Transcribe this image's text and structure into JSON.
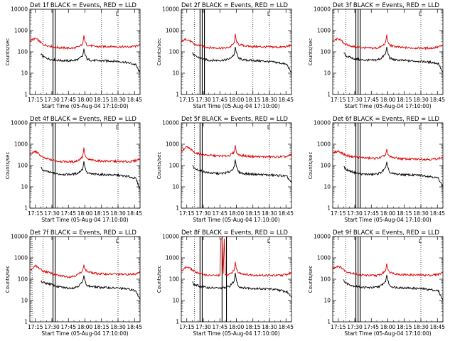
{
  "figure": {
    "background": "#ffffff",
    "event_color": "#000000",
    "lld_color": "#dd0000"
  },
  "chart_data": [
    {
      "type": "line",
      "title": "Det 1f BLACK = Events, RED = LLD",
      "xlabel": "Start Time (05-Aug-04 17:10:00)",
      "ylabel": "Counts/sec",
      "x_tick_labels": [
        "17:15",
        "17:30",
        "17:45",
        "18:00",
        "18:15",
        "18:30",
        "18:45"
      ],
      "y_tick_labels": [
        "1",
        "10",
        "100",
        "1000",
        "10000"
      ],
      "yscale": "log",
      "ylim": [
        1,
        10000
      ],
      "xlim_minutes": [
        0,
        100
      ],
      "grid": false,
      "annotation": "L",
      "series": [
        {
          "x": [
            0,
            2,
            5,
            8,
            12,
            18,
            25,
            35,
            40,
            44,
            48,
            49,
            50,
            52,
            56,
            62,
            70,
            80,
            90,
            96,
            100
          ],
          "y": [
            320,
            370,
            420,
            340,
            220,
            190,
            160,
            150,
            150,
            170,
            230,
            600,
            300,
            210,
            190,
            175,
            180,
            175,
            170,
            185,
            220
          ]
        },
        {
          "x": [
            10,
            12,
            18,
            25,
            35,
            40,
            44,
            48,
            49,
            50,
            52,
            56,
            62,
            70,
            80,
            90,
            96,
            100
          ],
          "y": [
            80,
            60,
            45,
            40,
            38,
            40,
            45,
            65,
            140,
            75,
            45,
            40,
            38,
            38,
            36,
            30,
            25,
            10
          ]
        }
      ],
      "vlines_dotted": [
        12,
        65,
        80
      ],
      "vlines_solid": [
        21,
        23
      ]
    },
    {
      "type": "line",
      "title": "Det 2f BLACK = Events, RED = LLD",
      "xlabel": "Start Time (05-Aug-04 17:10:00)",
      "ylabel": "Counts/sec",
      "x_tick_labels": [
        "17:15",
        "17:30",
        "17:45",
        "18:00",
        "18:15",
        "18:30",
        "18:45"
      ],
      "y_tick_labels": [
        "1",
        "10",
        "100",
        "1000",
        "10000"
      ],
      "yscale": "log",
      "ylim": [
        1,
        10000
      ],
      "xlim_minutes": [
        0,
        100
      ],
      "grid": false,
      "annotation": "L",
      "series": [
        {
          "x": [
            0,
            2,
            5,
            8,
            12,
            18,
            25,
            35,
            40,
            44,
            48,
            49,
            50,
            52,
            56,
            62,
            70,
            80,
            90,
            96,
            100
          ],
          "y": [
            300,
            350,
            400,
            320,
            220,
            190,
            160,
            150,
            150,
            170,
            250,
            700,
            320,
            220,
            200,
            180,
            175,
            170,
            165,
            180,
            210
          ]
        },
        {
          "x": [
            10,
            12,
            18,
            25,
            35,
            40,
            44,
            48,
            49,
            50,
            52,
            56,
            62,
            70,
            80,
            90,
            96,
            100
          ],
          "y": [
            90,
            65,
            50,
            40,
            40,
            42,
            48,
            75,
            170,
            90,
            50,
            42,
            40,
            38,
            35,
            30,
            25,
            10
          ]
        }
      ],
      "vlines_dotted": [
        12,
        65,
        80
      ],
      "vlines_solid": [
        17,
        19,
        21
      ]
    },
    {
      "type": "line",
      "title": "Det 3f BLACK = Events, RED = LLD",
      "xlabel": "Start Time (05-Aug-04 17:10:00)",
      "ylabel": "Counts/sec",
      "x_tick_labels": [
        "17:15",
        "17:30",
        "17:45",
        "18:00",
        "18:15",
        "18:30",
        "18:45"
      ],
      "y_tick_labels": [
        "1",
        "10",
        "100",
        "1000",
        "10000"
      ],
      "yscale": "log",
      "ylim": [
        1,
        10000
      ],
      "xlim_minutes": [
        0,
        100
      ],
      "grid": false,
      "annotation": "L",
      "series": [
        {
          "x": [
            0,
            2,
            5,
            8,
            12,
            18,
            25,
            35,
            40,
            44,
            48,
            49,
            50,
            52,
            56,
            62,
            70,
            80,
            90,
            96,
            100
          ],
          "y": [
            300,
            360,
            420,
            330,
            220,
            180,
            160,
            150,
            150,
            175,
            260,
            650,
            300,
            200,
            180,
            160,
            155,
            150,
            150,
            170,
            200
          ]
        },
        {
          "x": [
            10,
            12,
            18,
            25,
            35,
            40,
            44,
            48,
            49,
            50,
            52,
            56,
            62,
            70,
            80,
            90,
            96,
            100
          ],
          "y": [
            90,
            65,
            50,
            42,
            40,
            42,
            50,
            80,
            170,
            90,
            50,
            42,
            40,
            38,
            36,
            32,
            28,
            10
          ]
        }
      ],
      "vlines_dotted": [
        12,
        80
      ],
      "vlines_solid": [
        21,
        23,
        25
      ]
    },
    {
      "type": "line",
      "title": "Det 4f BLACK = Events, RED = LLD",
      "xlabel": "Start Time (05-Aug-04 17:10:00)",
      "ylabel": "Counts/sec",
      "x_tick_labels": [
        "17:15",
        "17:30",
        "17:45",
        "18:00",
        "18:15",
        "18:30",
        "18:45"
      ],
      "y_tick_labels": [
        "1",
        "10",
        "100",
        "1000",
        "10000"
      ],
      "yscale": "log",
      "ylim": [
        1,
        10000
      ],
      "xlim_minutes": [
        0,
        100
      ],
      "grid": false,
      "annotation": "L",
      "series": [
        {
          "x": [
            0,
            2,
            5,
            8,
            12,
            18,
            25,
            35,
            40,
            44,
            48,
            49,
            50,
            52,
            56,
            62,
            70,
            80,
            90,
            96,
            100
          ],
          "y": [
            320,
            380,
            460,
            360,
            230,
            190,
            160,
            150,
            150,
            175,
            260,
            700,
            300,
            200,
            180,
            165,
            160,
            155,
            150,
            170,
            210
          ]
        },
        {
          "x": [
            10,
            12,
            18,
            25,
            35,
            40,
            44,
            48,
            49,
            50,
            52,
            56,
            62,
            70,
            80,
            90,
            96,
            100
          ],
          "y": [
            80,
            60,
            48,
            40,
            38,
            40,
            45,
            70,
            160,
            80,
            45,
            40,
            38,
            37,
            35,
            30,
            25,
            8
          ]
        }
      ],
      "vlines_dotted": [
        12,
        80
      ],
      "vlines_solid": [
        21,
        23
      ]
    },
    {
      "type": "line",
      "title": "Det 5f BLACK = Events, RED = LLD",
      "xlabel": "Start Time (05-Aug-04 17:10:00)",
      "ylabel": "Counts/sec",
      "x_tick_labels": [
        "17:15",
        "17:30",
        "17:45",
        "18:00",
        "18:15",
        "18:30",
        "18:45"
      ],
      "y_tick_labels": [
        "1",
        "10",
        "100",
        "1000",
        "10000"
      ],
      "yscale": "log",
      "ylim": [
        1,
        10000
      ],
      "xlim_minutes": [
        0,
        100
      ],
      "grid": false,
      "annotation": "L",
      "series": [
        {
          "x": [
            0,
            2,
            5,
            8,
            12,
            18,
            25,
            35,
            40,
            44,
            48,
            49,
            50,
            52,
            56,
            62,
            70,
            80,
            90,
            96,
            100
          ],
          "y": [
            450,
            550,
            750,
            600,
            400,
            330,
            300,
            280,
            280,
            300,
            420,
            900,
            420,
            320,
            290,
            270,
            260,
            255,
            255,
            260,
            330
          ]
        },
        {
          "x": [
            10,
            12,
            18,
            25,
            35,
            40,
            44,
            48,
            49,
            50,
            52,
            56,
            62,
            70,
            80,
            90,
            96,
            100
          ],
          "y": [
            100,
            70,
            55,
            45,
            42,
            45,
            52,
            80,
            190,
            90,
            50,
            42,
            40,
            38,
            36,
            34,
            30,
            15
          ]
        }
      ],
      "vlines_dotted": [
        12,
        80
      ],
      "vlines_solid": [
        17,
        19
      ]
    },
    {
      "type": "line",
      "title": "Det 6f BLACK = Events, RED = LLD",
      "xlabel": "Start Time (05-Aug-04 17:10:00)",
      "ylabel": "Counts/sec",
      "x_tick_labels": [
        "17:15",
        "17:30",
        "17:45",
        "18:00",
        "18:15",
        "18:30",
        "18:45"
      ],
      "y_tick_labels": [
        "1",
        "10",
        "100",
        "1000",
        "10000"
      ],
      "yscale": "log",
      "ylim": [
        1,
        10000
      ],
      "xlim_minutes": [
        0,
        100
      ],
      "grid": false,
      "annotation": "L",
      "series": [
        {
          "x": [
            0,
            2,
            5,
            8,
            12,
            18,
            25,
            35,
            40,
            44,
            48,
            49,
            50,
            52,
            56,
            62,
            70,
            80,
            90,
            96,
            100
          ],
          "y": [
            350,
            420,
            480,
            390,
            300,
            260,
            240,
            220,
            220,
            240,
            320,
            600,
            330,
            250,
            230,
            210,
            200,
            200,
            195,
            210,
            250
          ]
        },
        {
          "x": [
            10,
            12,
            18,
            25,
            35,
            40,
            44,
            48,
            49,
            50,
            52,
            56,
            62,
            70,
            80,
            90,
            96,
            100
          ],
          "y": [
            90,
            65,
            50,
            40,
            38,
            40,
            48,
            75,
            150,
            80,
            45,
            40,
            38,
            36,
            35,
            30,
            25,
            10
          ]
        }
      ],
      "vlines_dotted": [
        12,
        80
      ],
      "vlines_solid": [
        21,
        23,
        25
      ]
    },
    {
      "type": "line",
      "title": "Det 7f BLACK = Events, RED = LLD",
      "xlabel": "Start Time (05-Aug-04 17:10:00)",
      "ylabel": "Counts/sec",
      "x_tick_labels": [
        "17:15",
        "17:30",
        "17:45",
        "18:00",
        "18:15",
        "18:30",
        "18:45"
      ],
      "y_tick_labels": [
        "1",
        "10",
        "100",
        "1000",
        "10000"
      ],
      "yscale": "log",
      "ylim": [
        1,
        10000
      ],
      "xlim_minutes": [
        0,
        100
      ],
      "grid": false,
      "annotation": "L",
      "series": [
        {
          "x": [
            0,
            2,
            5,
            8,
            12,
            18,
            25,
            35,
            40,
            44,
            48,
            49,
            50,
            52,
            56,
            62,
            70,
            80,
            90,
            96,
            100
          ],
          "y": [
            250,
            300,
            420,
            340,
            240,
            200,
            150,
            130,
            140,
            170,
            260,
            480,
            300,
            230,
            200,
            180,
            175,
            170,
            165,
            180,
            230
          ]
        },
        {
          "x": [
            10,
            12,
            18,
            25,
            35,
            40,
            44,
            48,
            49,
            50,
            52,
            56,
            62,
            70,
            80,
            90,
            96,
            100
          ],
          "y": [
            80,
            70,
            60,
            45,
            38,
            40,
            48,
            75,
            150,
            85,
            50,
            45,
            42,
            40,
            38,
            34,
            28,
            12
          ]
        }
      ],
      "vlines_dotted": [
        2,
        12,
        80
      ],
      "vlines_solid": [
        21,
        23
      ]
    },
    {
      "type": "line",
      "title": "Det 8f BLACK = Events, RED = LLD",
      "xlabel": "Start Time (05-Aug-04 17:10:00)",
      "ylabel": "Counts/sec",
      "x_tick_labels": [
        "17:15",
        "17:30",
        "17:45",
        "18:00",
        "18:15",
        "18:30",
        "18:45"
      ],
      "y_tick_labels": [
        "1",
        "10",
        "100",
        "1000",
        "10000"
      ],
      "yscale": "log",
      "ylim": [
        1,
        10000
      ],
      "xlim_minutes": [
        0,
        100
      ],
      "grid": false,
      "annotation": "L",
      "series": [
        {
          "x": [
            0,
            2,
            5,
            8,
            12,
            18,
            25,
            35,
            36,
            37,
            38,
            39,
            40,
            44,
            48,
            49,
            50,
            52,
            56,
            62,
            70,
            80,
            90,
            96,
            100
          ],
          "y": [
            250,
            300,
            380,
            320,
            230,
            180,
            150,
            150,
            8000,
            8000,
            180,
            8000,
            150,
            170,
            260,
            650,
            300,
            200,
            180,
            160,
            155,
            150,
            150,
            170,
            200
          ]
        },
        {
          "x": [
            10,
            12,
            18,
            25,
            35,
            40,
            44,
            48,
            49,
            50,
            52,
            56,
            62,
            70,
            80,
            90,
            96,
            100
          ],
          "y": [
            70,
            55,
            45,
            40,
            38,
            40,
            48,
            80,
            200,
            90,
            45,
            40,
            38,
            36,
            35,
            30,
            25,
            15
          ]
        }
      ],
      "vlines_dotted": [
        12,
        80
      ],
      "vlines_solid": [
        17,
        19,
        37,
        41
      ]
    },
    {
      "type": "line",
      "title": "Det 9f BLACK = Events, RED = LLD",
      "xlabel": "Start Time (05-Aug-04 17:10:00)",
      "ylabel": "Counts/sec",
      "x_tick_labels": [
        "17:15",
        "17:30",
        "17:45",
        "18:00",
        "18:15",
        "18:30",
        "18:45"
      ],
      "y_tick_labels": [
        "1",
        "10",
        "100",
        "1000",
        "10000"
      ],
      "yscale": "log",
      "ylim": [
        1,
        10000
      ],
      "xlim_minutes": [
        0,
        100
      ],
      "grid": false,
      "annotation": "L",
      "series": [
        {
          "x": [
            0,
            2,
            5,
            8,
            12,
            18,
            25,
            35,
            40,
            44,
            48,
            49,
            50,
            52,
            56,
            62,
            70,
            80,
            90,
            96,
            100
          ],
          "y": [
            300,
            360,
            420,
            340,
            230,
            190,
            160,
            150,
            150,
            170,
            250,
            550,
            300,
            210,
            185,
            165,
            160,
            155,
            155,
            170,
            210
          ]
        },
        {
          "x": [
            10,
            12,
            18,
            25,
            35,
            40,
            44,
            48,
            49,
            50,
            52,
            56,
            62,
            70,
            80,
            90,
            96,
            100
          ],
          "y": [
            90,
            65,
            50,
            42,
            40,
            42,
            50,
            80,
            160,
            85,
            48,
            42,
            40,
            38,
            36,
            32,
            28,
            10
          ]
        }
      ],
      "vlines_dotted": [
        12,
        80
      ],
      "vlines_solid": [
        21,
        23,
        25
      ]
    }
  ]
}
